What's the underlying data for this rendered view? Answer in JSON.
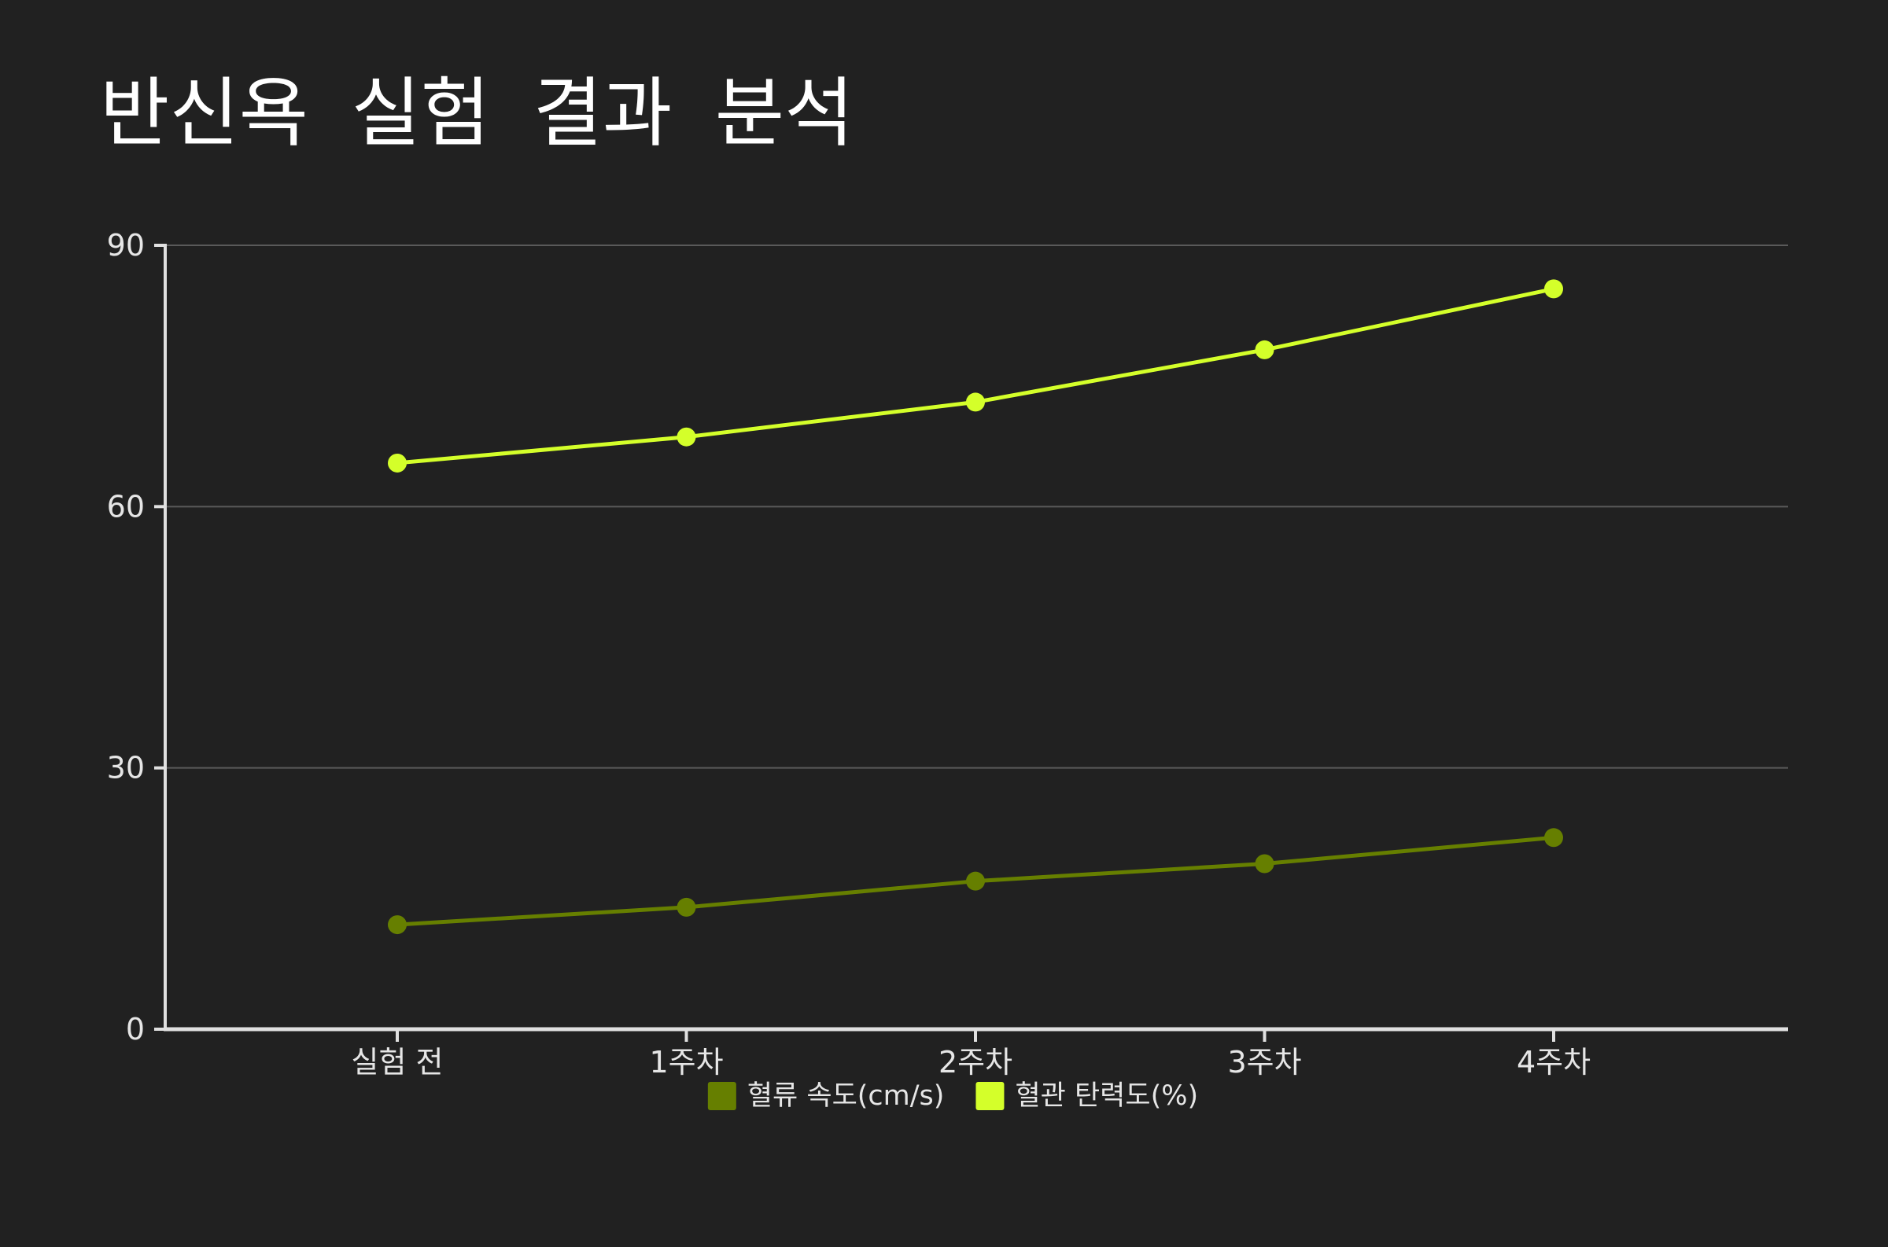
{
  "chart_data": {
    "type": "line",
    "title": "반신욕 실험 결과 분석",
    "categories": [
      "실험 전",
      "1주차",
      "2주차",
      "3주차",
      "4주차"
    ],
    "ylim": [
      0,
      90
    ],
    "yticks": [
      0,
      30,
      60,
      90
    ],
    "grid": true,
    "legend_position": "bottom",
    "series": [
      {
        "name": "혈류 속도(cm/s)",
        "values": [
          12,
          14,
          17,
          19,
          22
        ],
        "color": "#667f00"
      },
      {
        "name": "혈관 탄력도(%)",
        "values": [
          65,
          68,
          72,
          78,
          85
        ],
        "color": "#d4ff2a"
      }
    ],
    "colors": {
      "background": "#212121",
      "axis": "#e0e0e0",
      "grid": "#5a5a5a"
    }
  }
}
